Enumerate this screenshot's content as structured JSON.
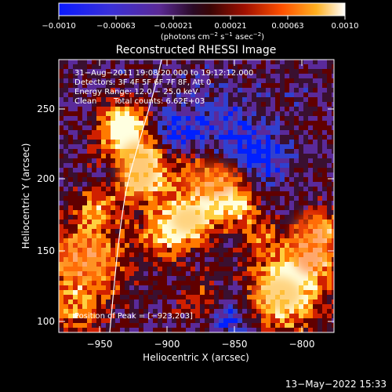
{
  "colorbar": {
    "ticks": [
      "−0.0010",
      "−0.00063",
      "−0.00021",
      "0.00021",
      "0.00063",
      "0.0010"
    ],
    "units_label": "(photons cm",
    "units_exp1": "−2",
    "units_mid": " s",
    "units_exp2": "−1",
    "units_mid2": " asec",
    "units_exp3": "−2",
    "units_close": ")"
  },
  "title": "Reconstructed RHESSI Image",
  "annotations": {
    "time_range": "31−Aug−2011 19:08:20.000 to 19:12:12.000",
    "detectors": "Detectors: 3F 4F 5F 6F 7F 8F, Att 0",
    "energy_range": "Energy Range: 12.0 − 25.0 keV",
    "clean_label": "Clean",
    "total_counts": "Total counts: 6.62E+03",
    "peak_position": "Position of Peak = [−923,203]"
  },
  "axes": {
    "xlabel": "Heliocentric X (arcsec)",
    "ylabel": "Heliocentric Y (arcsec)",
    "xticks": [
      "−950",
      "−900",
      "−850",
      "−800"
    ],
    "yticks": [
      "250",
      "200",
      "150",
      "100"
    ]
  },
  "footer_timestamp": "13−May−2022 15:33",
  "colors": {
    "background": "#000000",
    "axis": "#ffffff",
    "colormap": [
      "#0020ff",
      "#3040d0",
      "#5a2a9a",
      "#3a1030",
      "#600000",
      "#d02000",
      "#ff7a00",
      "#ffd040",
      "#ffffe0"
    ]
  }
}
